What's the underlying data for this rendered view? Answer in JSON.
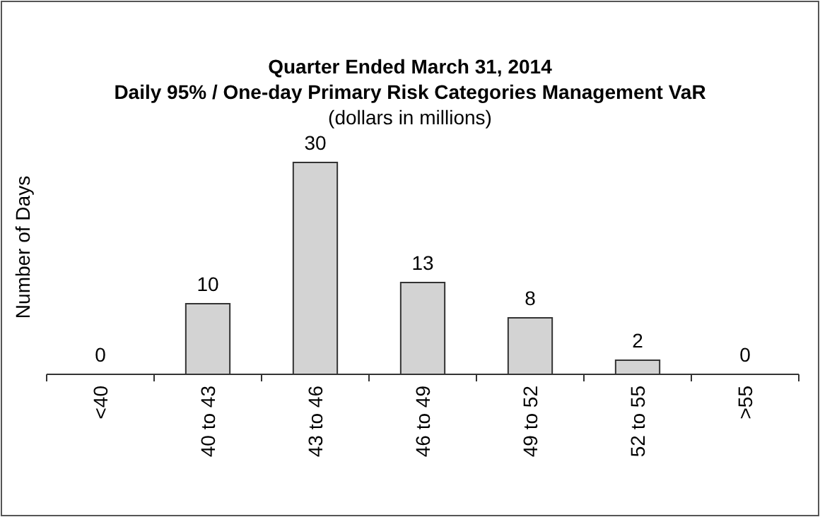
{
  "chart_data": {
    "type": "bar",
    "title": "Quarter Ended March 31, 2014",
    "subtitle": "Daily 95% / One-day Primary Risk Categories Management VaR",
    "annotations": [
      "(dollars in millions)"
    ],
    "ylabel": "Number of Days",
    "categories": [
      "<40",
      "40 to 43",
      "43 to 46",
      "46 to 49",
      "49 to 52",
      "52 to 55",
      ">55"
    ],
    "values": [
      0,
      10,
      30,
      13,
      8,
      2,
      0
    ],
    "color": "#d3d3d3",
    "data_labels": true
  }
}
